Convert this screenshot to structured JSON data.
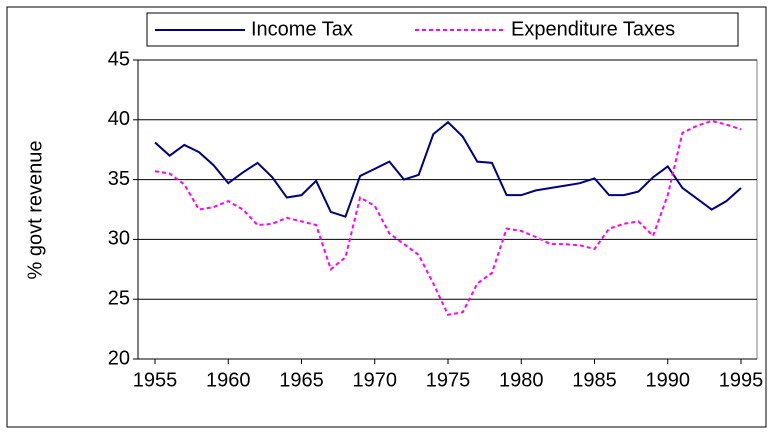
{
  "chart_data": {
    "type": "line",
    "y_label": "% govt revenue",
    "x": [
      1955,
      1956,
      1957,
      1958,
      1959,
      1960,
      1961,
      1962,
      1963,
      1964,
      1965,
      1966,
      1967,
      1968,
      1969,
      1970,
      1971,
      1972,
      1973,
      1974,
      1975,
      1976,
      1977,
      1978,
      1979,
      1980,
      1981,
      1982,
      1983,
      1984,
      1985,
      1986,
      1987,
      1988,
      1989,
      1990,
      1991,
      1992,
      1993,
      1994,
      1995
    ],
    "series": [
      {
        "name": "Income Tax",
        "color": "#000080",
        "dashed": false,
        "values": [
          38.1,
          37.0,
          37.9,
          37.3,
          36.2,
          34.7,
          35.6,
          36.4,
          35.2,
          33.5,
          33.7,
          34.9,
          32.3,
          31.9,
          35.3,
          35.9,
          36.5,
          35.0,
          35.4,
          38.8,
          39.8,
          38.6,
          36.5,
          36.4,
          33.7,
          33.7,
          34.1,
          34.3,
          34.5,
          34.7,
          35.1,
          33.7,
          33.7,
          34.0,
          35.2,
          36.1,
          34.3,
          33.4,
          32.5,
          33.2,
          34.3
        ]
      },
      {
        "name": "Expenditure Taxes",
        "color": "#ff00ff",
        "dashed": true,
        "values": [
          35.7,
          35.5,
          34.6,
          32.5,
          32.7,
          33.2,
          32.5,
          31.2,
          31.3,
          31.8,
          31.5,
          31.2,
          27.5,
          28.5,
          33.5,
          32.8,
          30.5,
          29.6,
          28.7,
          26.3,
          23.7,
          23.9,
          26.3,
          27.2,
          30.9,
          30.7,
          30.2,
          29.6,
          29.6,
          29.5,
          29.2,
          30.9,
          31.3,
          31.5,
          30.3,
          33.7,
          38.9,
          39.5,
          39.9,
          39.6,
          39.2
        ]
      }
    ],
    "xlim": [
      1955,
      1995
    ],
    "xticks": [
      1955,
      1960,
      1965,
      1970,
      1975,
      1980,
      1985,
      1990,
      1995
    ],
    "ylim": [
      20,
      45
    ],
    "yticks": [
      20,
      25,
      30,
      35,
      40,
      45
    ],
    "grid": true,
    "legend": "top"
  }
}
